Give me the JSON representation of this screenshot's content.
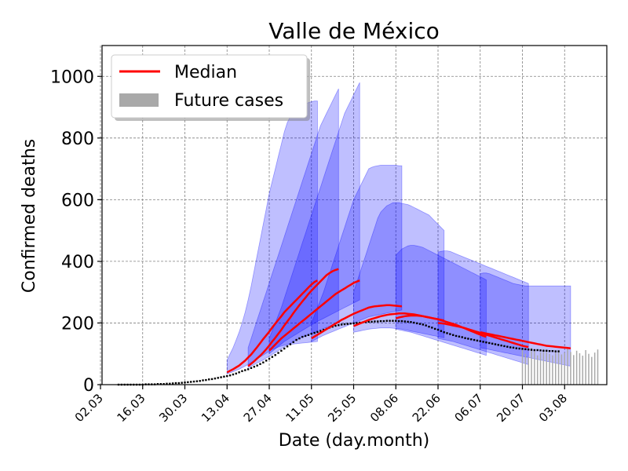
{
  "chart_data": {
    "type": "line",
    "title": "Valle de México",
    "xlabel": "Date (day.month)",
    "ylabel": "Confirmed deaths",
    "x_ticks": [
      "02.03",
      "16.03",
      "30.03",
      "13.04",
      "27.04",
      "11.05",
      "25.05",
      "08.06",
      "22.06",
      "06.07",
      "20.07",
      "03.08"
    ],
    "y_ticks": [
      0,
      200,
      400,
      600,
      800,
      1000
    ],
    "ylim": [
      0,
      1100
    ],
    "grid": true,
    "legend": {
      "position": "top-left",
      "entries": [
        "Median",
        "Future cases"
      ]
    },
    "colors": {
      "median": "#ff0000",
      "band": "#0000ff",
      "future_bar": "#a9a9a9",
      "observed": "#000000"
    },
    "observed": {
      "x_start": "08.03",
      "values": [
        0,
        0,
        0,
        0,
        0,
        0,
        0,
        0,
        0,
        1,
        1,
        1,
        1,
        2,
        2,
        2,
        3,
        3,
        4,
        5,
        5,
        6,
        7,
        8,
        9,
        10,
        11,
        12,
        14,
        15,
        17,
        18,
        20,
        22,
        24,
        26,
        28,
        30,
        33,
        36,
        40,
        44,
        47,
        50,
        54,
        58,
        62,
        67,
        72,
        78,
        84,
        90,
        96,
        103,
        110,
        117,
        124,
        131,
        138,
        145,
        150,
        155,
        158,
        161,
        165,
        168,
        171,
        174,
        178,
        181,
        185,
        188,
        191,
        193,
        195,
        196,
        197,
        198,
        199,
        200,
        201,
        202,
        203,
        204,
        204,
        205,
        205,
        206,
        206,
        207,
        207,
        207,
        207,
        206,
        206,
        205,
        204,
        203,
        201,
        199,
        197,
        195,
        192,
        188,
        185,
        181,
        178,
        174,
        170,
        167,
        164,
        161,
        158,
        156,
        154,
        151,
        149,
        147,
        145,
        143,
        141,
        139,
        137,
        135,
        133,
        131,
        129,
        127,
        125,
        123,
        121,
        120,
        118,
        117,
        116,
        115,
        114,
        113,
        112,
        112,
        111,
        110,
        110,
        109,
        109,
        108,
        108
      ]
    },
    "future_cases": {
      "x_start": "20.07",
      "values": [
        115,
        100,
        90,
        120,
        110,
        95,
        105,
        115,
        110,
        100,
        95,
        108,
        112,
        98,
        104,
        116,
        106,
        96,
        110,
        102,
        94,
        112,
        100,
        90,
        104,
        114
      ]
    },
    "series": [
      {
        "x_start": "13.04",
        "median": [
          40,
          45,
          50,
          56,
          62,
          70,
          78,
          88,
          98,
          110,
          122,
          135,
          148,
          160,
          172,
          185,
          198,
          210,
          222,
          235,
          245,
          255,
          265,
          275,
          285,
          295,
          305,
          315,
          325,
          333,
          338
        ],
        "lower": [
          35,
          38,
          42,
          46,
          50,
          55,
          60,
          66,
          72,
          78,
          84,
          90,
          96,
          102,
          108,
          114,
          118,
          122,
          125,
          128,
          130,
          131,
          132,
          133,
          134,
          135,
          136,
          137,
          138,
          139,
          140
        ],
        "upper": [
          80,
          100,
          120,
          145,
          170,
          200,
          235,
          275,
          320,
          370,
          420,
          470,
          520,
          570,
          620,
          660,
          700,
          740,
          780,
          820,
          850,
          870,
          880,
          890,
          900,
          905,
          910,
          915,
          918,
          920,
          920
        ]
      },
      {
        "x_start": "20.04",
        "median": [
          60,
          68,
          76,
          85,
          94,
          104,
          115,
          127,
          140,
          152,
          165,
          178,
          192,
          205,
          218,
          232,
          245,
          258,
          270,
          282,
          294,
          305,
          315,
          325,
          335,
          345,
          355,
          362,
          368,
          372,
          375
        ],
        "lower": [
          55,
          60,
          65,
          70,
          75,
          80,
          86,
          92,
          98,
          104,
          110,
          116,
          122,
          128,
          134,
          140,
          145,
          150,
          154,
          158,
          162,
          166,
          170,
          174,
          178,
          182,
          186,
          190,
          194,
          198,
          200
        ],
        "upper": [
          120,
          150,
          180,
          210,
          240,
          270,
          300,
          330,
          360,
          390,
          420,
          450,
          480,
          510,
          540,
          570,
          600,
          630,
          660,
          690,
          720,
          750,
          780,
          810,
          840,
          860,
          880,
          900,
          920,
          940,
          960
        ]
      },
      {
        "x_start": "27.04",
        "median": [
          110,
          120,
          130,
          140,
          150,
          158,
          166,
          174,
          182,
          190,
          198,
          206,
          214,
          222,
          230,
          238,
          246,
          254,
          262,
          270,
          278,
          286,
          294,
          300,
          306,
          312,
          318,
          324,
          330,
          334,
          338
        ],
        "lower": [
          100,
          108,
          116,
          124,
          132,
          140,
          146,
          152,
          158,
          164,
          170,
          176,
          182,
          188,
          194,
          200,
          205,
          210,
          215,
          220,
          225,
          230,
          235,
          240,
          245,
          250,
          255,
          260,
          265,
          270,
          275
        ],
        "upper": [
          150,
          175,
          200,
          225,
          250,
          280,
          310,
          340,
          370,
          400,
          430,
          460,
          490,
          520,
          550,
          580,
          610,
          640,
          670,
          700,
          730,
          760,
          790,
          820,
          850,
          880,
          900,
          920,
          940,
          960,
          980
        ]
      },
      {
        "x_start": "11.05",
        "median": [
          150,
          156,
          162,
          168,
          174,
          180,
          186,
          192,
          198,
          204,
          210,
          215,
          220,
          225,
          230,
          234,
          238,
          242,
          246,
          250,
          252,
          254,
          255,
          256,
          257,
          258,
          258,
          257,
          256,
          255,
          254
        ],
        "lower": [
          140,
          145,
          150,
          155,
          160,
          164,
          168,
          172,
          176,
          180,
          184,
          188,
          192,
          196,
          200,
          204,
          208,
          212,
          216,
          220,
          222,
          224,
          226,
          228,
          230,
          232,
          234,
          236,
          238,
          240,
          242
        ],
        "upper": [
          200,
          225,
          250,
          275,
          300,
          330,
          360,
          390,
          420,
          450,
          480,
          510,
          540,
          570,
          600,
          620,
          640,
          660,
          680,
          700,
          705,
          708,
          710,
          712,
          712,
          712,
          712,
          712,
          712,
          710,
          710
        ]
      },
      {
        "x_start": "25.05",
        "median": [
          190,
          194,
          198,
          202,
          206,
          210,
          213,
          216,
          219,
          222,
          224,
          226,
          228,
          229,
          230,
          231,
          231,
          231,
          230,
          229,
          228,
          226,
          224,
          222,
          220,
          218,
          216,
          214,
          212,
          210,
          208
        ],
        "lower": [
          170,
          172,
          174,
          176,
          178,
          180,
          181,
          182,
          183,
          184,
          184,
          184,
          184,
          183,
          182,
          181,
          180,
          178,
          176,
          174,
          172,
          170,
          168,
          166,
          164,
          162,
          160,
          158,
          156,
          154,
          152
        ],
        "upper": [
          300,
          330,
          360,
          390,
          420,
          450,
          480,
          510,
          540,
          560,
          570,
          580,
          585,
          590,
          590,
          590,
          588,
          586,
          584,
          580,
          575,
          570,
          565,
          560,
          555,
          550,
          540,
          530,
          520,
          510,
          500
        ]
      },
      {
        "x_start": "08.06",
        "median": [
          215,
          218,
          220,
          222,
          223,
          224,
          224,
          224,
          223,
          222,
          220,
          218,
          216,
          214,
          212,
          209,
          206,
          203,
          200,
          197,
          194,
          190,
          186,
          182,
          178,
          174,
          170,
          166,
          162,
          158,
          155
        ],
        "lower": [
          180,
          178,
          176,
          174,
          172,
          170,
          167,
          164,
          161,
          158,
          155,
          152,
          149,
          146,
          143,
          140,
          137,
          134,
          131,
          128,
          125,
          122,
          119,
          116,
          113,
          110,
          107,
          104,
          101,
          98,
          95
        ],
        "upper": [
          420,
          430,
          440,
          445,
          450,
          452,
          452,
          450,
          448,
          445,
          440,
          435,
          430,
          425,
          420,
          415,
          410,
          405,
          400,
          395,
          390,
          385,
          380,
          375,
          370,
          365,
          360,
          355,
          350,
          345,
          340
        ]
      },
      {
        "x_start": "22.06",
        "median": [
          200,
          199,
          198,
          196,
          194,
          192,
          190,
          188,
          186,
          183,
          180,
          177,
          174,
          171,
          168,
          165,
          162,
          159,
          156,
          153,
          150,
          147,
          144,
          141,
          138,
          135,
          132,
          129,
          126,
          124,
          122
        ],
        "lower": [
          150,
          148,
          146,
          144,
          142,
          140,
          137,
          134,
          131,
          128,
          125,
          122,
          119,
          116,
          113,
          110,
          107,
          104,
          101,
          98,
          95,
          92,
          89,
          86,
          83,
          80,
          77,
          74,
          71,
          68,
          65
        ],
        "upper": [
          430,
          432,
          434,
          434,
          432,
          428,
          424,
          420,
          416,
          412,
          408,
          404,
          400,
          396,
          392,
          388,
          384,
          380,
          376,
          372,
          368,
          364,
          360,
          356,
          352,
          348,
          344,
          340,
          336,
          332,
          328
        ]
      },
      {
        "x_start": "06.07",
        "median": [
          170,
          168,
          166,
          164,
          162,
          160,
          158,
          156,
          154,
          152,
          150,
          148,
          146,
          144,
          142,
          140,
          138,
          136,
          134,
          132,
          130,
          128,
          126,
          125,
          124,
          123,
          122,
          121,
          120,
          119,
          118
        ],
        "lower": [
          120,
          118,
          116,
          114,
          112,
          110,
          108,
          106,
          104,
          102,
          100,
          98,
          96,
          94,
          92,
          90,
          88,
          86,
          84,
          82,
          80,
          78,
          76,
          74,
          72,
          70,
          68,
          66,
          64,
          62,
          60
        ],
        "upper": [
          360,
          362,
          362,
          360,
          356,
          352,
          348,
          344,
          340,
          336,
          332,
          328,
          326,
          324,
          322,
          320,
          320,
          320,
          320,
          320,
          320,
          320,
          320,
          320,
          320,
          320,
          320,
          320,
          320,
          320,
          320
        ]
      }
    ]
  }
}
